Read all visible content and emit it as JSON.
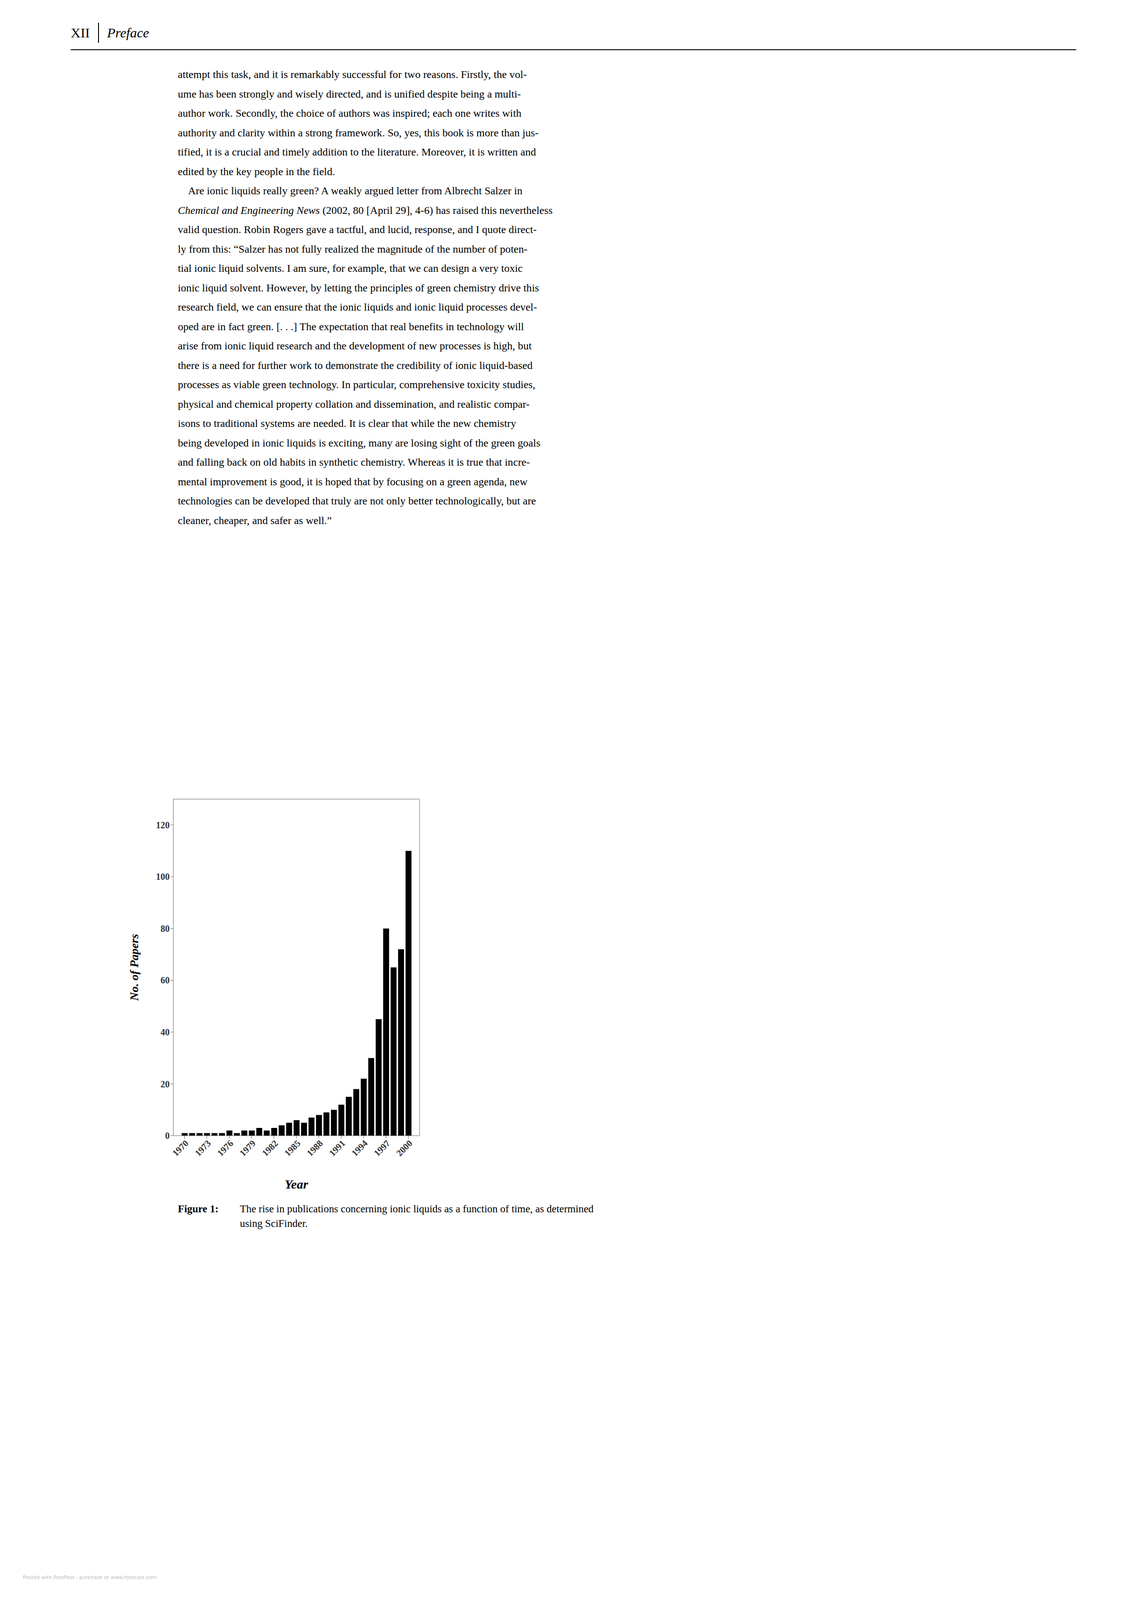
{
  "chart_data": {
    "type": "bar",
    "x": [
      1970,
      1971,
      1972,
      1973,
      1974,
      1975,
      1976,
      1977,
      1978,
      1979,
      1980,
      1981,
      1982,
      1983,
      1984,
      1985,
      1986,
      1987,
      1988,
      1989,
      1990,
      1991,
      1992,
      1993,
      1994,
      1995,
      1996,
      1997,
      1998,
      1999,
      2000
    ],
    "values": [
      1,
      1,
      1,
      1,
      1,
      1,
      2,
      1,
      2,
      2,
      3,
      2,
      3,
      4,
      5,
      6,
      5,
      7,
      8,
      9,
      10,
      12,
      15,
      18,
      22,
      30,
      45,
      80,
      65,
      72,
      110
    ],
    "color": "#000000",
    "xlabel": "Year",
    "ylabel": "No. of Papers",
    "xlim": [
      1968.5,
      2001.5
    ],
    "xticks": [
      1970,
      1973,
      1976,
      1979,
      1982,
      1985,
      1988,
      1991,
      1994,
      1997,
      2000
    ],
    "ylim": [
      0,
      130
    ],
    "yticks": [
      0,
      20,
      40,
      60,
      80,
      100,
      120
    ]
  },
  "page_header": [
    "XII",
    "Preface"
  ],
  "body_lines": [
    "attempt this task, and it is remarkably successful for two reasons. Firstly, the vol-",
    "ume has been strongly and wisely directed, and is unified despite being a multi-",
    "author work. Secondly, the choice of authors was inspired; each one writes with",
    "authority and clarity within a strong framework. So, yes, this book is more than jus-",
    "tified, it is a crucial and timely addition to the literature. Moreover, it is written and",
    "edited by the key people in the field.",
    "    Are ionic liquids really green? A weakly argued letter from Albrecht Salzer in",
    "Chemical and Engineering News (2002, 80 [April 29], 4-6) has raised this nevertheless",
    "valid question. Robin Rogers gave a tactful, and lucid, response, and I quote direct-",
    "ly from this: “Salzer has not fully realized the magnitude of the number of poten-",
    "tial ionic liquid solvents. I am sure, for example, that we can design a very toxic",
    "ionic liquid solvent. However, by letting the principles of green chemistry drive this",
    "research field, we can ensure that the ionic liquids and ionic liquid processes devel-",
    "oped are in fact green. [. . .] The expectation that real benefits in technology will",
    "arise from ionic liquid research and the development of new processes is high, but",
    "there is a need for further work to demonstrate the credibility of ionic liquid-based",
    "processes as viable green technology. In particular, comprehensive toxicity studies,",
    "physical and chemical property collation and dissemination, and realistic compar-",
    "isons to traditional systems are needed. It is clear that while the new chemistry",
    "being developed in ionic liquids is exciting, many are losing sight of the green goals",
    "and falling back on old habits in synthetic chemistry. Whereas it is true that incre-",
    "mental improvement is good, it is hoped that by focusing on a green agenda, new",
    "technologies can be developed that truly are not only better technologically, but are",
    "cleaner, cheaper, and safer as well.”"
  ],
  "italic_phrase": "Chemical and Engineering News",
  "caption": [
    "Figure 1:",
    "The rise in publications concerning ionic liquids as a function of time, as determined",
    "using SciFinder."
  ],
  "footer": "Posted with PostPost - purchase at www.forecast.com"
}
